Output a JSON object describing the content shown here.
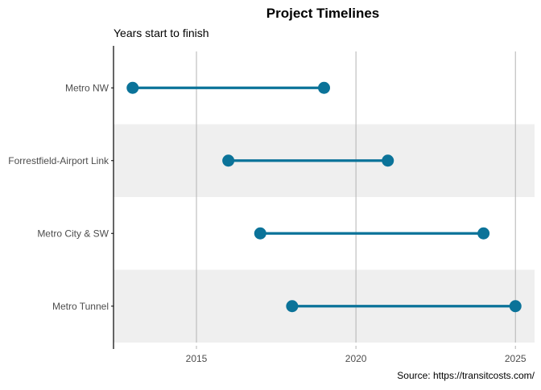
{
  "chart_data": {
    "type": "dumbbell",
    "title": "Project Timelines",
    "subtitle": "Years start to finish",
    "caption": "Source: https://transitcosts.com/",
    "xlabel": "",
    "ylabel": "",
    "xlim": [
      2012.4,
      2025.6
    ],
    "x_ticks": [
      2015,
      2020,
      2025
    ],
    "grid": "vertical-major",
    "band_shading": "alternating-rows",
    "categories": [
      "Metro NW",
      "Forrestfield-Airport Link",
      "Metro City & SW",
      "Metro Tunnel"
    ],
    "series": [
      {
        "values": [
          {
            "project": "Metro NW",
            "start": 2013,
            "end": 2019
          },
          {
            "project": "Forrestfield-Airport Link",
            "start": 2016,
            "end": 2021
          },
          {
            "project": "Metro City & SW",
            "start": 2017,
            "end": 2024
          },
          {
            "project": "Metro Tunnel",
            "start": 2018,
            "end": 2025
          }
        ]
      }
    ],
    "colors": {
      "mark": "#0b7399",
      "band": "#efefef",
      "grid": "#b4b4b4",
      "axis": "#000000",
      "tick_text": "#4d4d4d",
      "text": "#000000"
    }
  }
}
